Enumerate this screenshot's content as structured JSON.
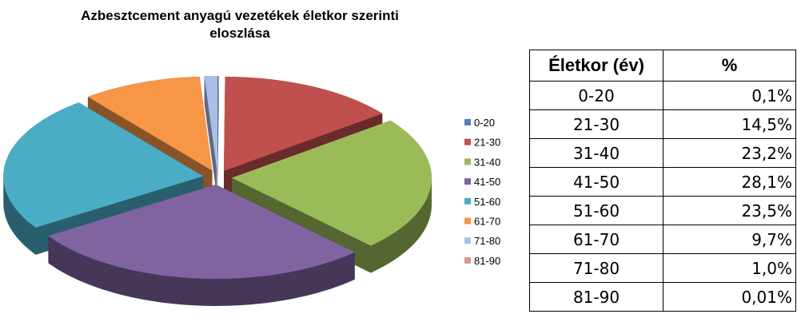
{
  "chart_data": {
    "type": "pie",
    "title": "Azbesztcement anyagú vezetékek életkor szerinti eloszlása",
    "categories": [
      "0-20",
      "21-30",
      "31-40",
      "41-50",
      "51-60",
      "61-70",
      "71-80",
      "81-90"
    ],
    "values": [
      0.1,
      14.5,
      23.2,
      28.1,
      23.5,
      9.7,
      1.0,
      0.01
    ],
    "value_labels": [
      "0,1%",
      "14,5%",
      "23,2%",
      "28,1%",
      "23,5%",
      "9,7%",
      "1,0%",
      "0,01%"
    ],
    "colors": [
      "#4f81bd",
      "#c0504d",
      "#9bbb59",
      "#8064a2",
      "#4bacc6",
      "#f79646",
      "#a9bfe6",
      "#d99694"
    ],
    "legend": "right",
    "exploded": true,
    "three_d": true
  },
  "table": {
    "columns": [
      "Életkor (év)",
      "%"
    ]
  }
}
